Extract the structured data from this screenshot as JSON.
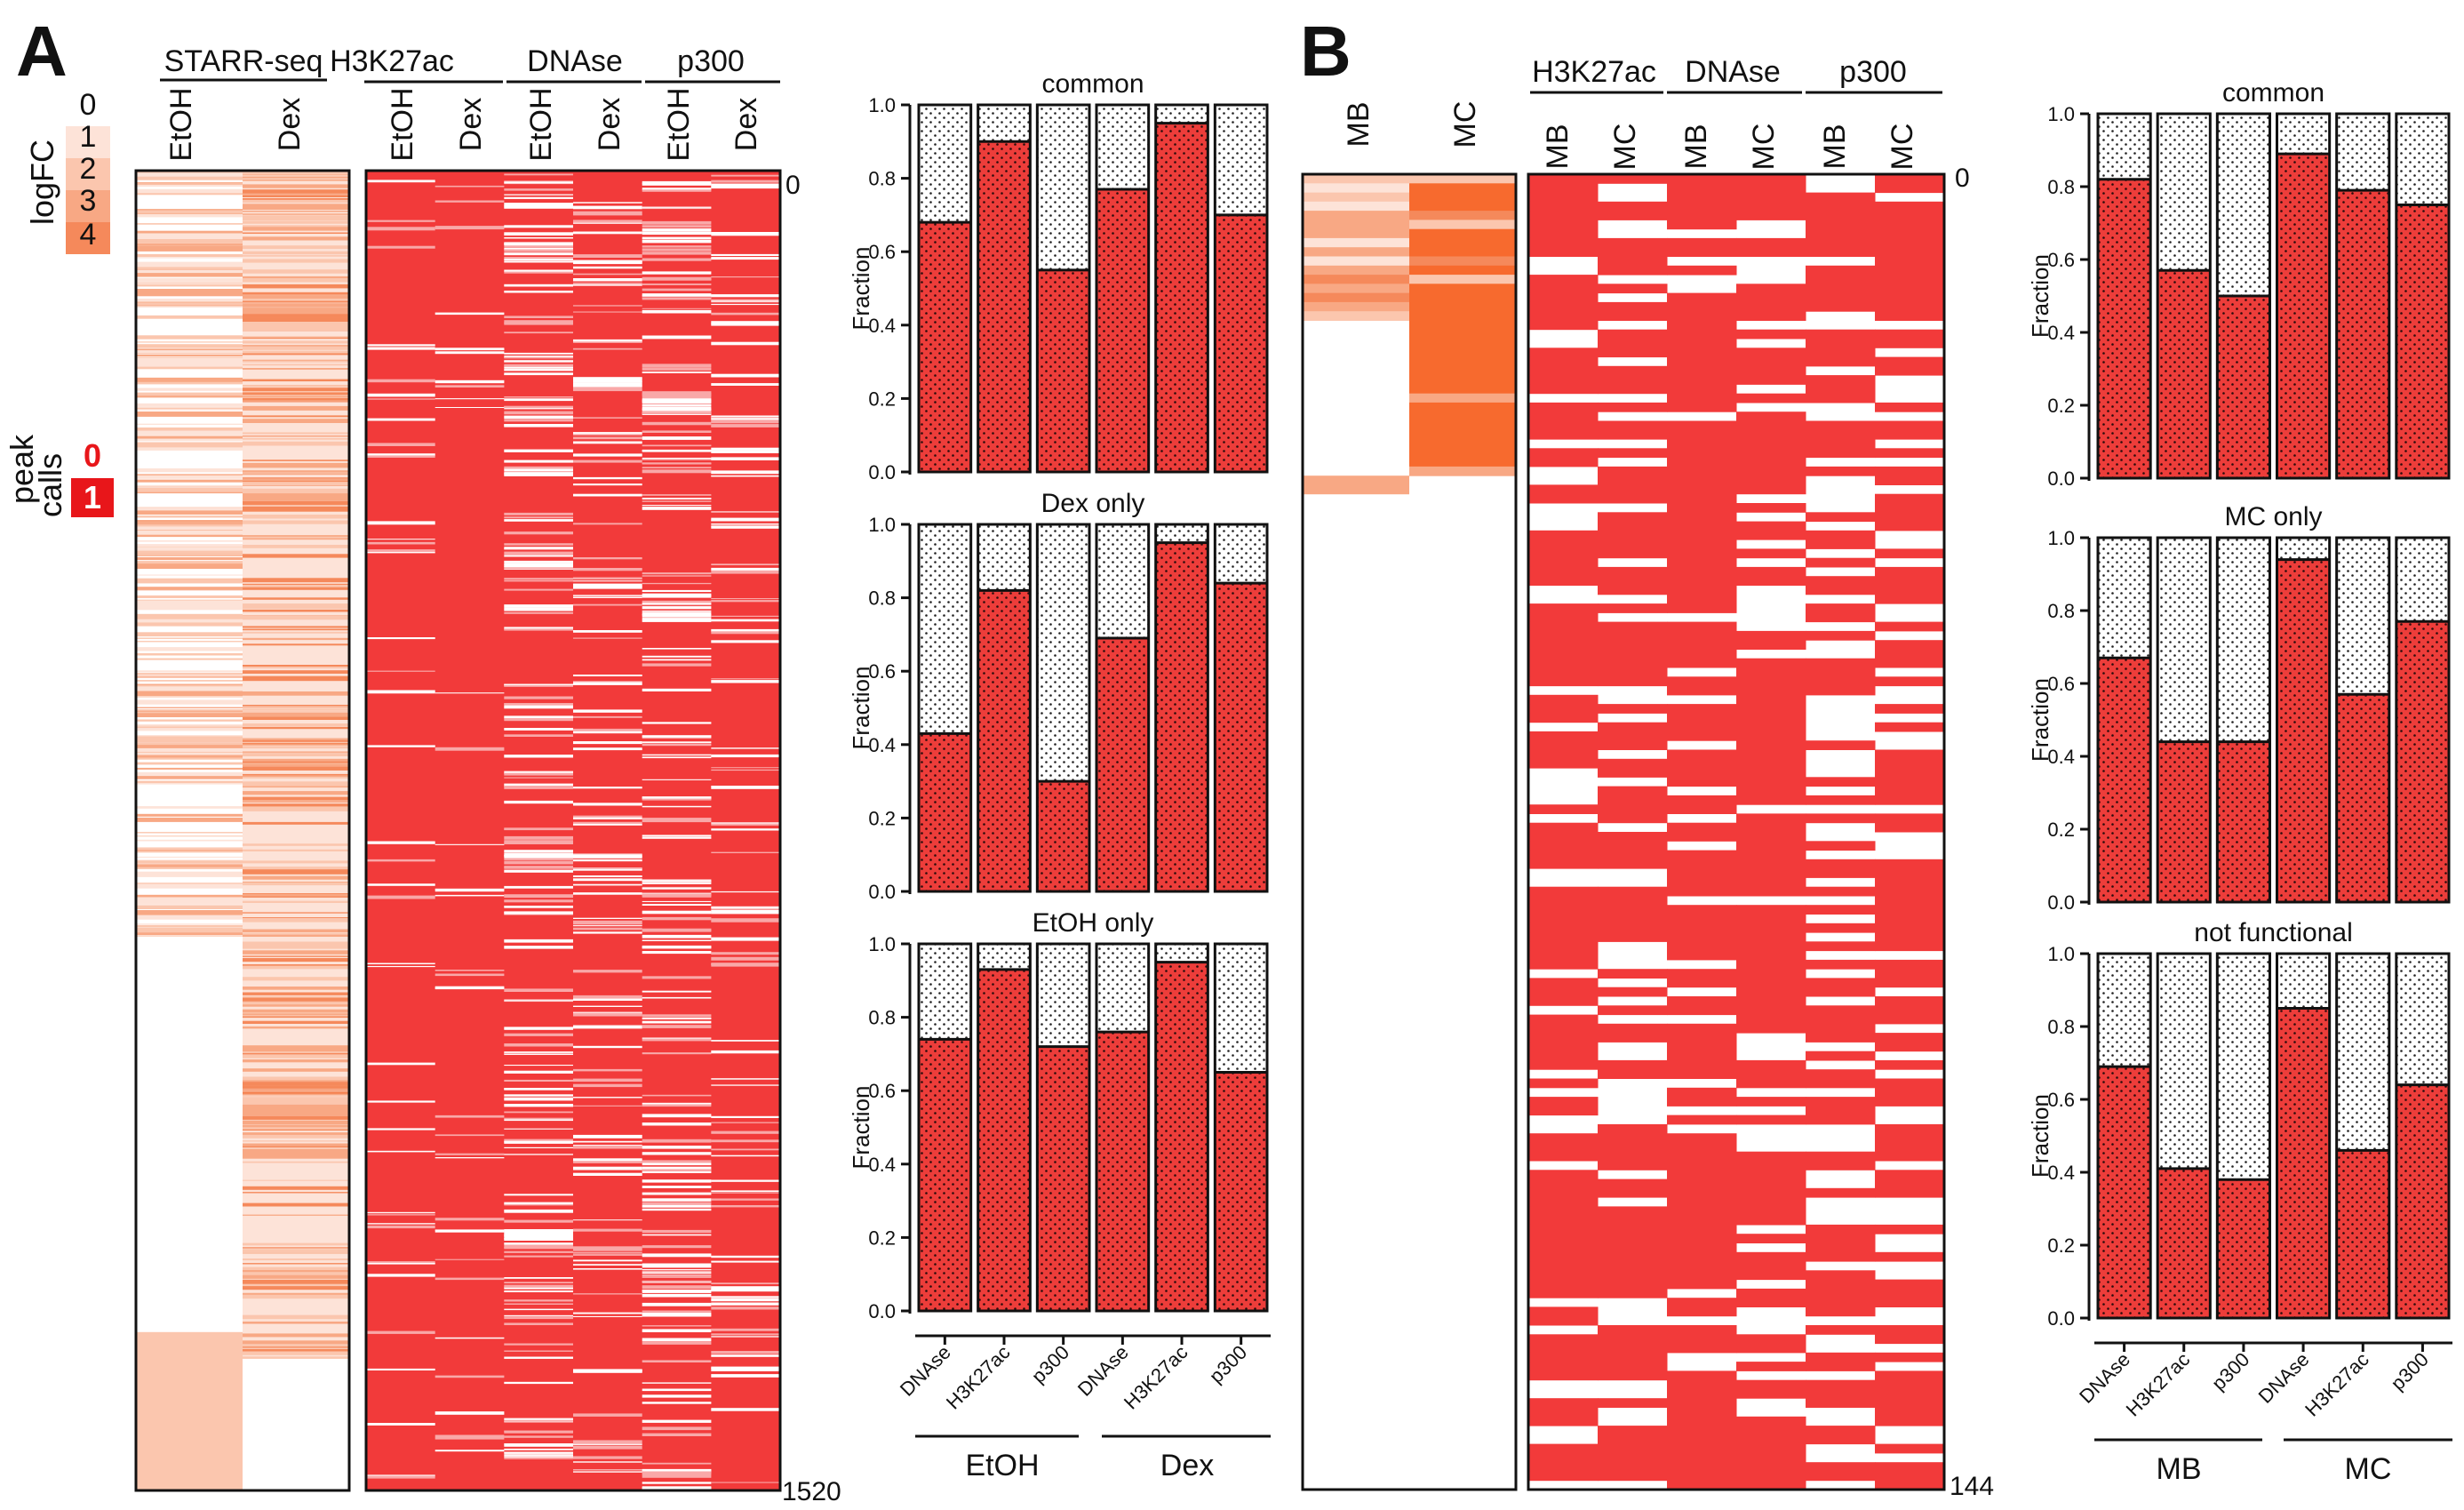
{
  "panels": {
    "A": {
      "letter": "A",
      "starr_header": "STARR-seq",
      "starr_cols": [
        "EtOH",
        "Dex"
      ],
      "marks": [
        "H3K27ac",
        "DNAse",
        "p300"
      ],
      "mark_cols": [
        "EtOH",
        "Dex",
        "EtOH",
        "Dex",
        "EtOH",
        "Dex"
      ],
      "row_top": "0",
      "row_bottom": "1520"
    },
    "B": {
      "letter": "B",
      "starr_cols": [
        "MB",
        "MC"
      ],
      "marks": [
        "H3K27ac",
        "DNAse",
        "p300"
      ],
      "mark_cols": [
        "MB",
        "MC",
        "MB",
        "MC",
        "MB",
        "MC"
      ],
      "row_top": "0",
      "row_bottom": "144"
    }
  },
  "legend": {
    "logfc_label": "logFC",
    "logfc_levels": [
      "0",
      "1",
      "2",
      "3",
      "4"
    ],
    "logfc_colors": [
      "#ffffff",
      "#fde3d8",
      "#fbc6ae",
      "#f8a884",
      "#f5895b"
    ],
    "peak_label_1": "peak",
    "peak_label_2": "calls",
    "peak_levels": [
      "0",
      "1"
    ],
    "peak_colors": [
      "#ffffff",
      "#e8161a"
    ]
  },
  "colors": {
    "bar_fill": "#ed3d3a",
    "heat_red": "#f23a3a",
    "starr_orange": "#f76a2e"
  },
  "chart_data": [
    {
      "type": "bar",
      "stacked": true,
      "title": "common",
      "ylabel": "Fraction",
      "ylim": [
        0,
        1
      ],
      "yticks": [
        "0.0",
        "0.2",
        "0.4",
        "0.6",
        "0.8",
        "1.0"
      ],
      "categories": [
        "DNAse",
        "H3K27ac",
        "p300",
        "DNAse",
        "H3K27ac",
        "p300"
      ],
      "groups": [
        "EtOH",
        "Dex"
      ],
      "values": [
        0.68,
        0.9,
        0.55,
        0.77,
        0.95,
        0.7
      ]
    },
    {
      "type": "bar",
      "stacked": true,
      "title": "Dex only",
      "ylabel": "Fraction",
      "ylim": [
        0,
        1
      ],
      "yticks": [
        "0.0",
        "0.2",
        "0.4",
        "0.6",
        "0.8",
        "1.0"
      ],
      "categories": [
        "DNAse",
        "H3K27ac",
        "p300",
        "DNAse",
        "H3K27ac",
        "p300"
      ],
      "groups": [
        "EtOH",
        "Dex"
      ],
      "values": [
        0.43,
        0.82,
        0.3,
        0.69,
        0.95,
        0.84
      ]
    },
    {
      "type": "bar",
      "stacked": true,
      "title": "EtOH only",
      "ylabel": "Fraction",
      "ylim": [
        0,
        1
      ],
      "yticks": [
        "0.0",
        "0.2",
        "0.4",
        "0.6",
        "0.8",
        "1.0"
      ],
      "categories": [
        "DNAse",
        "H3K27ac",
        "p300",
        "DNAse",
        "H3K27ac",
        "p300"
      ],
      "groups": [
        "EtOH",
        "Dex"
      ],
      "values": [
        0.74,
        0.93,
        0.72,
        0.76,
        0.95,
        0.65
      ]
    },
    {
      "type": "bar",
      "stacked": true,
      "title": "common",
      "ylabel": "Fraction",
      "ylim": [
        0,
        1
      ],
      "yticks": [
        "0.0",
        "0.2",
        "0.4",
        "0.6",
        "0.8",
        "1.0"
      ],
      "categories": [
        "DNAse",
        "H3K27ac",
        "p300",
        "DNAse",
        "H3K27ac",
        "p300"
      ],
      "groups": [
        "MB",
        "MC"
      ],
      "values": [
        0.82,
        0.57,
        0.5,
        0.89,
        0.79,
        0.75
      ]
    },
    {
      "type": "bar",
      "stacked": true,
      "title": "MC only",
      "ylabel": "Fraction",
      "ylim": [
        0,
        1
      ],
      "yticks": [
        "0.0",
        "0.2",
        "0.4",
        "0.6",
        "0.8",
        "1.0"
      ],
      "categories": [
        "DNAse",
        "H3K27ac",
        "p300",
        "DNAse",
        "H3K27ac",
        "p300"
      ],
      "groups": [
        "MB",
        "MC"
      ],
      "values": [
        0.67,
        0.44,
        0.44,
        0.94,
        0.57,
        0.77
      ]
    },
    {
      "type": "bar",
      "stacked": true,
      "title": "not functional",
      "ylabel": "Fraction",
      "ylim": [
        0,
        1
      ],
      "yticks": [
        "0.0",
        "0.2",
        "0.4",
        "0.6",
        "0.8",
        "1.0"
      ],
      "categories": [
        "DNAse",
        "H3K27ac",
        "p300",
        "DNAse",
        "H3K27ac",
        "p300"
      ],
      "groups": [
        "MB",
        "MC"
      ],
      "values": [
        0.69,
        0.41,
        0.38,
        0.85,
        0.46,
        0.64
      ]
    }
  ]
}
